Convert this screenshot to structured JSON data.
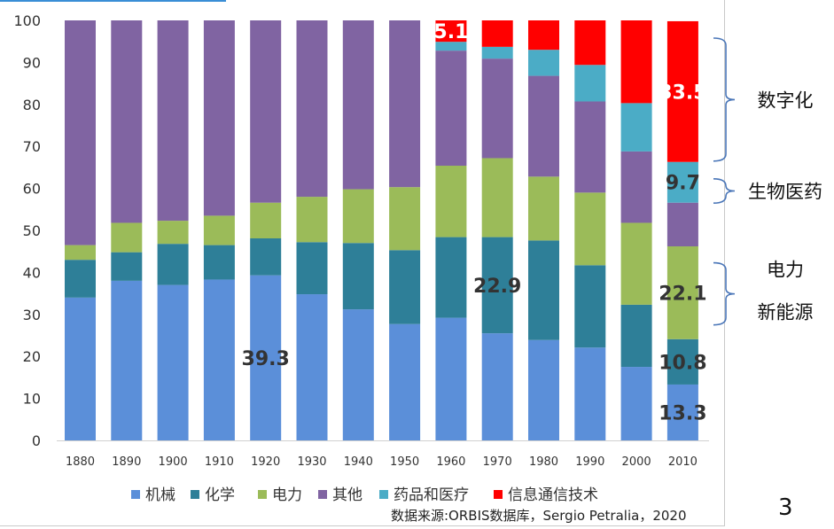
{
  "chart_data": {
    "type": "bar",
    "stacked": true,
    "categories": [
      "1880",
      "1890",
      "1900",
      "1910",
      "1920",
      "1930",
      "1940",
      "1950",
      "1960",
      "1970",
      "1980",
      "1990",
      "2000",
      "2010"
    ],
    "ylim": [
      0,
      100
    ],
    "yticks": [
      0,
      10,
      20,
      30,
      40,
      50,
      60,
      70,
      80,
      90,
      100
    ],
    "grid": false,
    "legend_position": "bottom",
    "series": [
      {
        "name": "机械",
        "color": "#5b8fd9",
        "values": [
          34,
          38,
          37,
          38.3,
          39.3,
          34.8,
          31.2,
          27.7,
          29.2,
          25.5,
          23.9,
          22.1,
          17.5,
          13.3
        ]
      },
      {
        "name": "化学",
        "color": "#2e7f98",
        "values": [
          9,
          6.8,
          9.8,
          8.2,
          8.8,
          12.4,
          15.8,
          17.6,
          19.2,
          22.9,
          23.7,
          19.6,
          14.8,
          10.8
        ]
      },
      {
        "name": "电力",
        "color": "#9bbb59",
        "values": [
          3.5,
          7,
          5.5,
          7,
          8.5,
          10.8,
          12.8,
          15,
          17,
          18.8,
          15.2,
          17.3,
          19.5,
          22.1
        ]
      },
      {
        "name": "其他",
        "color": "#8064a2",
        "values": [
          53.5,
          48.2,
          47.7,
          46.5,
          43.4,
          42,
          40.2,
          39.7,
          27.4,
          23.7,
          24,
          21.7,
          17,
          10.4
        ]
      },
      {
        "name": "药品和医疗",
        "color": "#4bacc6",
        "values": [
          0,
          0,
          0,
          0,
          0,
          0,
          0,
          0,
          2.1,
          2.8,
          6.2,
          8.7,
          11.5,
          9.7
        ]
      },
      {
        "name": "信息通信技术",
        "color": "#ff0000",
        "values": [
          0,
          0,
          0,
          0,
          0,
          0,
          0,
          0,
          5.1,
          6.3,
          7,
          10.6,
          19.7,
          33.5
        ]
      }
    ],
    "data_labels": [
      {
        "category": "1920",
        "series": "机械",
        "text": "39.3",
        "color": "#333333"
      },
      {
        "category": "1960",
        "series": "信息通信技术",
        "text": "5.1",
        "color": "#ffffff"
      },
      {
        "category": "1970",
        "series": "化学",
        "text": "22.9",
        "color": "#333333"
      },
      {
        "category": "2010",
        "series": "机械",
        "text": "13.3",
        "color": "#333333"
      },
      {
        "category": "2010",
        "series": "化学",
        "text": "10.8",
        "color": "#333333"
      },
      {
        "category": "2010",
        "series": "电力",
        "text": "22.1",
        "color": "#333333"
      },
      {
        "category": "2010",
        "series": "药品和医疗",
        "text": "9.7",
        "color": "#333333"
      },
      {
        "category": "2010",
        "series": "信息通信技术",
        "text": "33.5",
        "color": "#ffffff"
      }
    ],
    "annotations": [
      {
        "label_lines": [
          "数字化"
        ],
        "y_range": [
          66.5,
          100
        ]
      },
      {
        "label_lines": [
          "生物医药"
        ],
        "y_range": [
          56.5,
          66.5
        ]
      },
      {
        "label_lines": [
          "电力",
          "新能源"
        ],
        "y_range": [
          27.5,
          46.5
        ]
      }
    ]
  },
  "source_note": "数据来源:ORBIS数据库，Sergio Petralia，2020",
  "page_number": "3"
}
